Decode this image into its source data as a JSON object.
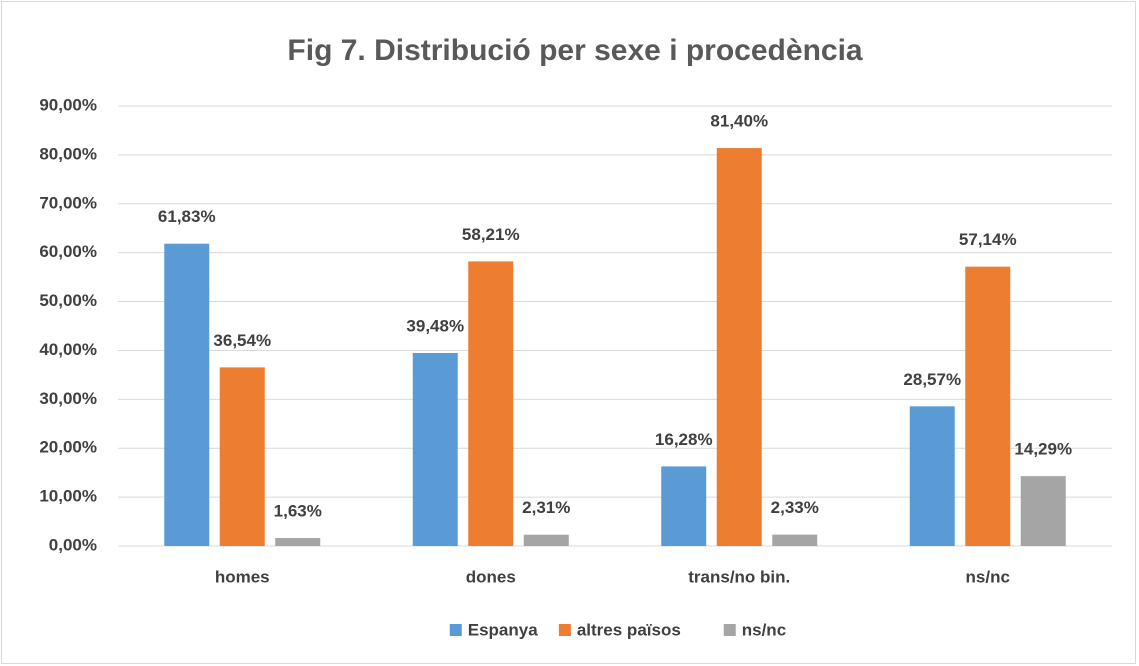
{
  "chart_data": {
    "type": "bar",
    "title": "Fig 7. Distribució per sexe i procedència",
    "categories": [
      "homes",
      "dones",
      "trans/no bin.",
      "ns/nc"
    ],
    "series": [
      {
        "name": "Espanya",
        "color": "#5b9bd5",
        "values": [
          61.83,
          39.48,
          16.28,
          28.57
        ],
        "value_labels": [
          "61,83%",
          "39,48%",
          "16,28%",
          "28,57%"
        ]
      },
      {
        "name": "altres països",
        "color": "#ed7d31",
        "values": [
          36.54,
          58.21,
          81.4,
          57.14
        ],
        "value_labels": [
          "36,54%",
          "58,21%",
          "81,40%",
          "57,14%"
        ]
      },
      {
        "name": "ns/nc",
        "color": "#a5a5a5",
        "values": [
          1.63,
          2.31,
          2.33,
          14.29
        ],
        "value_labels": [
          "1,63%",
          "2,31%",
          "2,33%",
          "14,29%"
        ]
      }
    ],
    "ylim": [
      0,
      90
    ],
    "yticks": [
      {
        "value": 0,
        "label": "0,00%"
      },
      {
        "value": 10,
        "label": "10,00%"
      },
      {
        "value": 20,
        "label": "20,00%"
      },
      {
        "value": 30,
        "label": "30,00%"
      },
      {
        "value": 40,
        "label": "40,00%"
      },
      {
        "value": 50,
        "label": "50,00%"
      },
      {
        "value": 60,
        "label": "60,00%"
      },
      {
        "value": 70,
        "label": "70,00%"
      },
      {
        "value": 80,
        "label": "80,00%"
      },
      {
        "value": 90,
        "label": "90,00%"
      }
    ],
    "grid": true,
    "legend": "bottom"
  }
}
